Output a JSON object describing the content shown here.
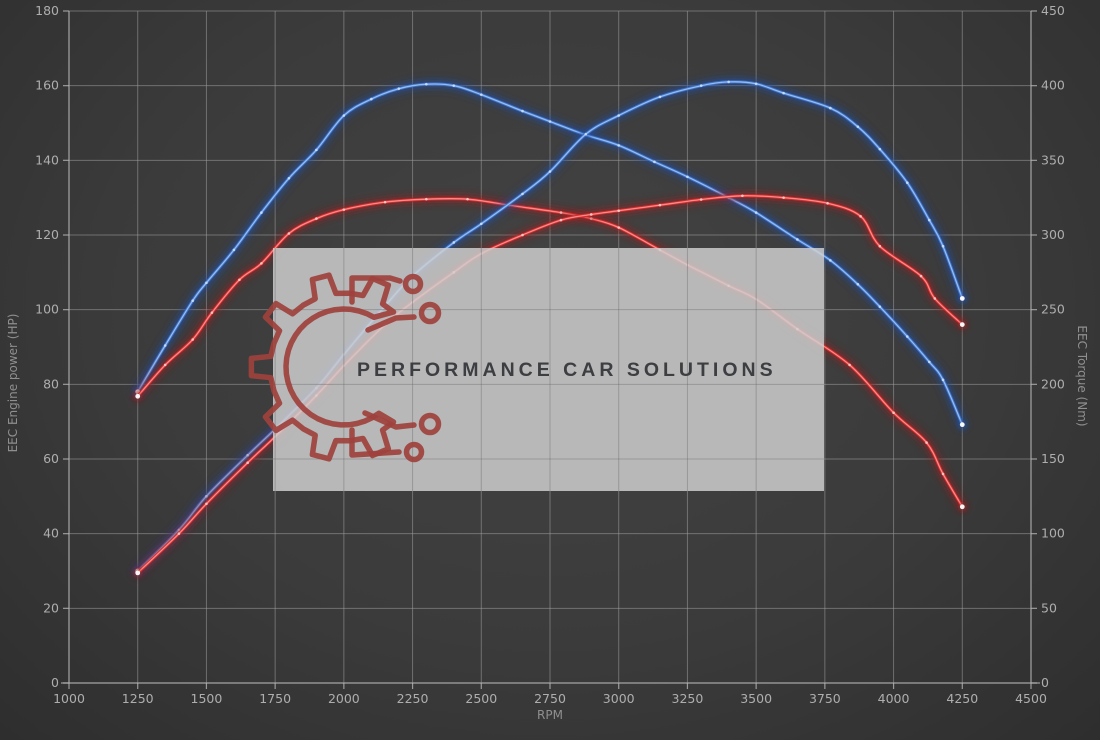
{
  "chart": {
    "x_axis": {
      "title": "RPM",
      "min": 1000,
      "max": 4500,
      "step": 250,
      "ticks": [
        1000,
        1250,
        1500,
        1750,
        2000,
        2250,
        2500,
        2750,
        3000,
        3250,
        3500,
        3750,
        4000,
        4250,
        4500
      ]
    },
    "left_axis": {
      "title": "EEC Engine power (HP)",
      "min": 0,
      "max": 180,
      "step": 20,
      "ticks": [
        0,
        20,
        40,
        60,
        80,
        100,
        120,
        140,
        160,
        180
      ]
    },
    "right_axis": {
      "title": "EEC Torque (Nm)",
      "min": 0,
      "max": 450,
      "step": 50,
      "ticks": [
        0,
        50,
        100,
        150,
        200,
        250,
        300,
        350,
        400,
        450
      ]
    }
  },
  "watermark": {
    "text": "PERFORMANCE CAR SOLUTIONS",
    "text_color": "#3c3e41",
    "logo_color": "#9e413d",
    "box_color": "rgba(207,207,207,0.84)"
  },
  "chart_data": {
    "type": "line",
    "xlabel": "RPM",
    "x_range": [
      1000,
      4500
    ],
    "left_ylabel": "EEC Engine power (HP)",
    "left_ylim": [
      0,
      180
    ],
    "right_ylabel": "EEC Torque (Nm)",
    "right_ylim": [
      0,
      450
    ],
    "grid": true,
    "legend": "none",
    "colors": {
      "blue": {
        "glow": "#1d4fa8",
        "core": "#3b74cf",
        "hi": "#a8c9f2",
        "dot": "#d6e6ff"
      },
      "red": {
        "glow": "#9b1a1a",
        "core": "#d92b2b",
        "hi": "#ff9d9d",
        "dot": "#ffd6d6"
      }
    },
    "series": [
      {
        "id": "torque_run_blue",
        "axis": "right",
        "unit": "Nm",
        "color": "blue",
        "points": [
          [
            1250,
            195
          ],
          [
            1350,
            226
          ],
          [
            1450,
            256
          ],
          [
            1500,
            268
          ],
          [
            1600,
            290
          ],
          [
            1700,
            315
          ],
          [
            1800,
            338
          ],
          [
            1900,
            357
          ],
          [
            2000,
            380
          ],
          [
            2100,
            391
          ],
          [
            2200,
            398
          ],
          [
            2300,
            401
          ],
          [
            2400,
            400
          ],
          [
            2500,
            394
          ],
          [
            2650,
            383
          ],
          [
            2750,
            376
          ],
          [
            2880,
            367
          ],
          [
            3000,
            360
          ],
          [
            3130,
            349
          ],
          [
            3250,
            339
          ],
          [
            3400,
            325
          ],
          [
            3500,
            315
          ],
          [
            3650,
            297
          ],
          [
            3770,
            283
          ],
          [
            3870,
            267
          ],
          [
            3950,
            252
          ],
          [
            4050,
            232
          ],
          [
            4130,
            215
          ],
          [
            4180,
            203
          ],
          [
            4250,
            173
          ]
        ]
      },
      {
        "id": "torque_run_red",
        "axis": "right",
        "unit": "Nm",
        "color": "red",
        "points": [
          [
            1250,
            192
          ],
          [
            1350,
            213
          ],
          [
            1450,
            230
          ],
          [
            1520,
            248
          ],
          [
            1620,
            270
          ],
          [
            1700,
            281
          ],
          [
            1800,
            301
          ],
          [
            1900,
            311
          ],
          [
            2000,
            317
          ],
          [
            2150,
            322
          ],
          [
            2300,
            324
          ],
          [
            2450,
            324
          ],
          [
            2600,
            320
          ],
          [
            2790,
            315
          ],
          [
            2900,
            311
          ],
          [
            3000,
            305
          ],
          [
            3150,
            290
          ],
          [
            3250,
            280
          ],
          [
            3400,
            266
          ],
          [
            3500,
            257
          ],
          [
            3650,
            237
          ],
          [
            3840,
            213
          ],
          [
            4000,
            181
          ],
          [
            4120,
            161
          ],
          [
            4180,
            140
          ],
          [
            4250,
            118
          ]
        ]
      },
      {
        "id": "power_run_blue",
        "axis": "left",
        "unit": "HP",
        "color": "blue",
        "points": [
          [
            1250,
            30
          ],
          [
            1400,
            41
          ],
          [
            1500,
            50
          ],
          [
            1650,
            61
          ],
          [
            1750,
            68
          ],
          [
            1900,
            79
          ],
          [
            2000,
            88
          ],
          [
            2150,
            101
          ],
          [
            2250,
            109
          ],
          [
            2400,
            118
          ],
          [
            2500,
            123
          ],
          [
            2650,
            131
          ],
          [
            2750,
            137
          ],
          [
            2880,
            147
          ],
          [
            3000,
            152
          ],
          [
            3150,
            157
          ],
          [
            3300,
            160
          ],
          [
            3400,
            161
          ],
          [
            3500,
            160.5
          ],
          [
            3600,
            158
          ],
          [
            3770,
            154
          ],
          [
            3870,
            149
          ],
          [
            3950,
            143
          ],
          [
            4050,
            134
          ],
          [
            4130,
            124
          ],
          [
            4180,
            117
          ],
          [
            4250,
            103
          ]
        ]
      },
      {
        "id": "power_run_red",
        "axis": "left",
        "unit": "HP",
        "color": "red",
        "points": [
          [
            1250,
            29.5
          ],
          [
            1400,
            40
          ],
          [
            1500,
            48
          ],
          [
            1650,
            59
          ],
          [
            1750,
            66
          ],
          [
            1900,
            77
          ],
          [
            2000,
            85
          ],
          [
            2150,
            96
          ],
          [
            2250,
            102
          ],
          [
            2400,
            110
          ],
          [
            2500,
            115
          ],
          [
            2650,
            120
          ],
          [
            2790,
            124
          ],
          [
            2900,
            125.5
          ],
          [
            3000,
            126.5
          ],
          [
            3150,
            128
          ],
          [
            3300,
            129.5
          ],
          [
            3450,
            130.5
          ],
          [
            3600,
            130
          ],
          [
            3760,
            128.5
          ],
          [
            3880,
            125
          ],
          [
            3950,
            117
          ],
          [
            4100,
            109
          ],
          [
            4150,
            103
          ],
          [
            4250,
            96
          ]
        ]
      }
    ]
  }
}
